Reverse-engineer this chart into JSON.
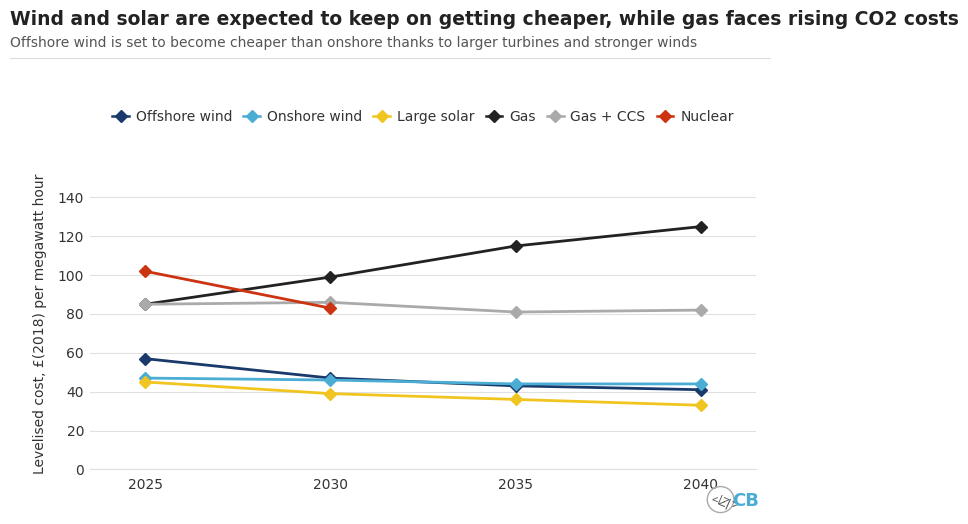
{
  "title": "Wind and solar are expected to keep on getting cheaper, while gas faces rising CO2 costs",
  "subtitle": "Offshore wind is set to become cheaper than onshore thanks to larger turbines and stronger winds",
  "ylabel": "Levelised cost, £(2018) per megawatt hour",
  "years": [
    2025,
    2030,
    2035,
    2040
  ],
  "series": {
    "Offshore wind": {
      "values": [
        57,
        47,
        43,
        41
      ],
      "color": "#1a3a6b"
    },
    "Onshore wind": {
      "values": [
        47,
        46,
        44,
        44
      ],
      "color": "#4badd4"
    },
    "Large solar": {
      "values": [
        45,
        39,
        36,
        33
      ],
      "color": "#f0c520"
    },
    "Gas": {
      "values": [
        85,
        99,
        115,
        125
      ],
      "color": "#222222"
    },
    "Gas + CCS": {
      "values": [
        85,
        86,
        81,
        82
      ],
      "color": "#aaaaaa"
    },
    "Nuclear": {
      "values": [
        102,
        83,
        null,
        null
      ],
      "color": "#cc3311"
    }
  },
  "ylim": [
    0,
    150
  ],
  "yticks": [
    0,
    20,
    40,
    60,
    80,
    100,
    120,
    140
  ],
  "background_color": "#ffffff",
  "grid_color": "#e0e0e0",
  "title_fontsize": 13.5,
  "subtitle_fontsize": 10,
  "axis_fontsize": 10,
  "tick_fontsize": 10,
  "legend_fontsize": 10
}
